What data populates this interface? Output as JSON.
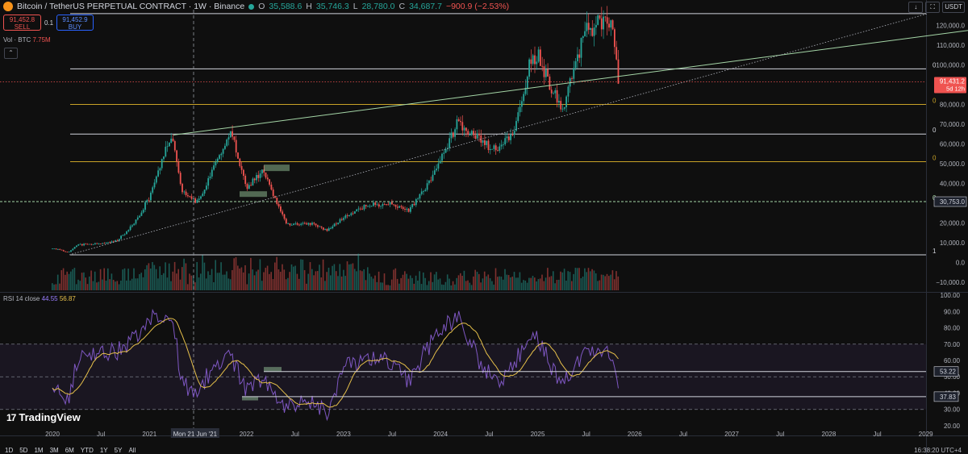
{
  "header": {
    "symbol": "Bitcoin / TetherUS PERPETUAL CONTRACT · 1W · Binance",
    "o_label": "O",
    "o_val": "35,588.6",
    "h_label": "H",
    "h_val": "35,746.3",
    "l_label": "L",
    "l_val": "28,780.0",
    "c_label": "C",
    "c_val": "34,687.7",
    "change": "−900.9 (−2.53%)"
  },
  "trade": {
    "sell_price": "91,452.8",
    "sell_label": "SELL",
    "qty": "0.1",
    "buy_price": "91,452.9",
    "buy_label": "BUY"
  },
  "volume_legend": {
    "label": "Vol · BTC",
    "value": "7.75M"
  },
  "collapse_glyph": "⌃",
  "rsi_legend": {
    "label": "RSI 14 close",
    "rsi": "44.55",
    "ma": "56.87"
  },
  "branding": {
    "name": "TradingView",
    "mark": "17"
  },
  "timeframes": [
    "1D",
    "5D",
    "1M",
    "3M",
    "6M",
    "YTD",
    "1Y",
    "5Y",
    "All"
  ],
  "clock": "16:38:20 UTC+4",
  "toolbar": {
    "currency": "USDT",
    "down_arrow": "↓",
    "fullscreen": "⛶"
  },
  "colors": {
    "up": "#26a69a",
    "down": "#ef5350",
    "rsi": "#7e57c2",
    "rsi_ma": "#e6c04a",
    "fib_white": "#d1d4dc",
    "fib_gold": "#c9a227",
    "trend_green": "#a5d6a7"
  },
  "chart_data": [
    {
      "type": "candlestick",
      "title": "",
      "x_ticks": [
        "2020",
        "Jul",
        "2021",
        "Mon 21 Jun '21",
        "2022",
        "Jul",
        "2023",
        "Jul",
        "2024",
        "Jul",
        "2025",
        "Jul",
        "2026",
        "Jul",
        "2027",
        "Jul",
        "2028",
        "Jul",
        "2029"
      ],
      "y_ticks": [
        "120,000.0",
        "110,000.0",
        "100,000.0",
        "90,000.0",
        "80,000.0",
        "70,000.0",
        "60,000.0",
        "50,000.0",
        "40,000.0",
        "20,000.0",
        "10,000.0",
        "0.0",
        "−10,000.0"
      ],
      "ylim": [
        -15000,
        128000
      ],
      "last_price_label": "91,431.2",
      "countdown": "5d 12h",
      "marked_level_label": "30,753.0",
      "fib_levels": [
        {
          "price": 3800,
          "label": "1",
          "color": "white"
        },
        {
          "price": 30753,
          "label": "0",
          "color": "green"
        },
        {
          "price": 51000,
          "label": "0",
          "color": "gold"
        },
        {
          "price": 65000,
          "label": "0",
          "color": "white"
        },
        {
          "price": 80000,
          "label": "0",
          "color": "gold"
        },
        {
          "price": 98000,
          "label": "0",
          "color": "white"
        },
        {
          "price": 126000,
          "label": "",
          "color": "white"
        }
      ],
      "anchors": [
        {
          "date": "2020-01",
          "close": 7200
        },
        {
          "date": "2020-03",
          "close": 5000
        },
        {
          "date": "2020-04",
          "close": 8800
        },
        {
          "date": "2020-07",
          "close": 9500
        },
        {
          "date": "2020-09",
          "close": 11000
        },
        {
          "date": "2020-11",
          "close": 19000
        },
        {
          "date": "2021-01",
          "close": 33000
        },
        {
          "date": "2021-03",
          "close": 57000
        },
        {
          "date": "2021-04",
          "close": 62000
        },
        {
          "date": "2021-05",
          "close": 37000
        },
        {
          "date": "2021-07",
          "close": 30000
        },
        {
          "date": "2021-09",
          "close": 48000
        },
        {
          "date": "2021-11",
          "close": 67000
        },
        {
          "date": "2022-01",
          "close": 38000
        },
        {
          "date": "2022-03",
          "close": 46000
        },
        {
          "date": "2022-06",
          "close": 19000
        },
        {
          "date": "2022-09",
          "close": 19500
        },
        {
          "date": "2022-11",
          "close": 16000
        },
        {
          "date": "2023-01",
          "close": 23000
        },
        {
          "date": "2023-04",
          "close": 29000
        },
        {
          "date": "2023-07",
          "close": 29500
        },
        {
          "date": "2023-09",
          "close": 26000
        },
        {
          "date": "2023-12",
          "close": 43000
        },
        {
          "date": "2024-03",
          "close": 70000
        },
        {
          "date": "2024-06",
          "close": 62000
        },
        {
          "date": "2024-08",
          "close": 56000
        },
        {
          "date": "2024-10",
          "close": 67000
        },
        {
          "date": "2024-12",
          "close": 100000
        },
        {
          "date": "2025-01",
          "close": 105000
        },
        {
          "date": "2025-04",
          "close": 76000
        },
        {
          "date": "2025-07",
          "close": 118000
        },
        {
          "date": "2025-10",
          "close": 123000
        },
        {
          "date": "2025-11",
          "close": 91431
        }
      ]
    },
    {
      "type": "line",
      "title": "RSI 14 close",
      "y_ticks": [
        "100.00",
        "90.00",
        "80.00",
        "70.00",
        "60.00",
        "50.00",
        "40.00",
        "30.00",
        "20.00"
      ],
      "ylim": [
        18,
        102
      ],
      "levels": [
        70,
        50,
        30
      ],
      "line_labels": [
        "53.22",
        "37.83"
      ],
      "series": [
        {
          "values_at_anchors": [
            48,
            35,
            60,
            66,
            65,
            74,
            85,
            88,
            82,
            45,
            40,
            58,
            64,
            40,
            50,
            30,
            35,
            28,
            55,
            62,
            60,
            48,
            72,
            88,
            58,
            45,
            57,
            74,
            72,
            45,
            68,
            64,
            38
          ]
        }
      ]
    }
  ]
}
